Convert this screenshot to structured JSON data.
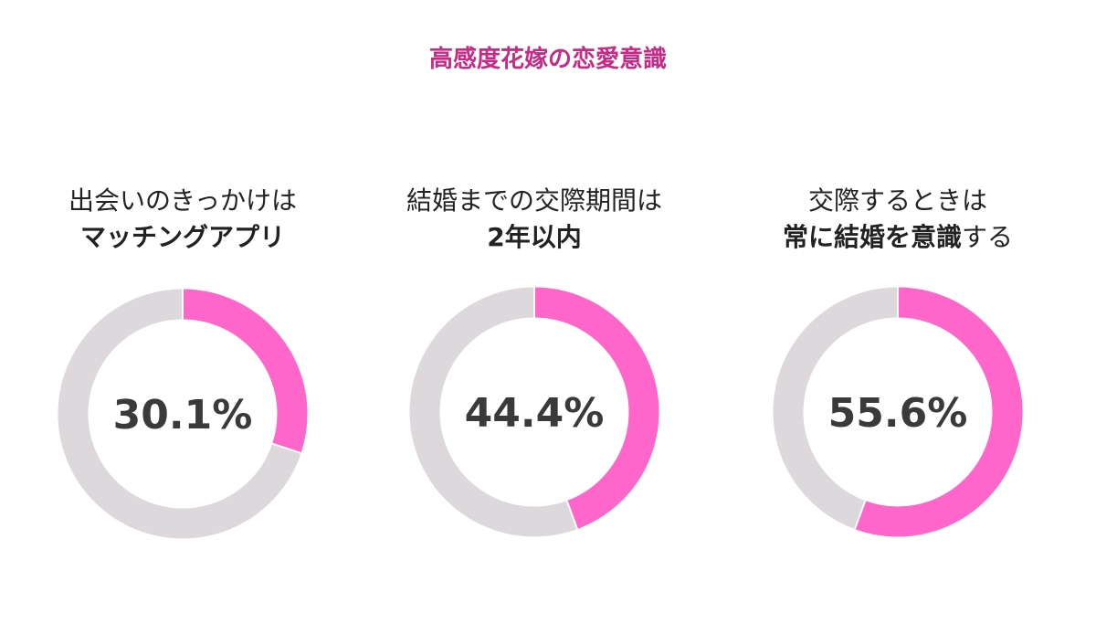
{
  "title": "高感度花嫁の恋愛意識",
  "colors": {
    "title": "#c72a86",
    "highlight": "#ff66c9",
    "rest": "#dcd8dc",
    "value_text": "#3a3a3a"
  },
  "chart_data": [
    {
      "type": "pie",
      "style": "donut",
      "label_line1": "出会いのきっかけは",
      "label_line2_bold": "マッチングアプリ",
      "label_line2_normal": "",
      "value": 30.1,
      "value_label": "30.1%"
    },
    {
      "type": "pie",
      "style": "donut",
      "label_line1": "結婚までの交際期間は",
      "label_line2_bold": "2年以内",
      "label_line2_normal": "",
      "value": 44.4,
      "value_label": "44.4%"
    },
    {
      "type": "pie",
      "style": "donut",
      "label_line1": "交際するときは",
      "label_line2_bold": "常に結婚を意識",
      "label_line2_normal": "する",
      "value": 55.6,
      "value_label": "55.6%"
    }
  ]
}
